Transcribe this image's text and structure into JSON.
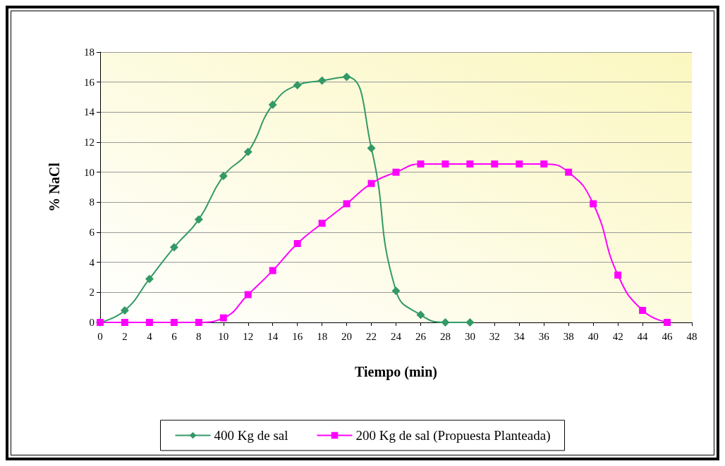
{
  "chart_data": {
    "type": "line",
    "xlabel": "Tiempo (min)",
    "ylabel": "% NaCl",
    "xlim": [
      0,
      48
    ],
    "xticks": [
      0,
      2,
      4,
      6,
      8,
      10,
      12,
      14,
      16,
      18,
      20,
      22,
      24,
      26,
      28,
      30,
      32,
      34,
      36,
      38,
      40,
      42,
      44,
      46,
      48
    ],
    "ylim": [
      0,
      18
    ],
    "yticks": [
      0,
      2,
      4,
      6,
      8,
      10,
      12,
      14,
      16,
      18
    ],
    "grid": "y",
    "legend": "bottom",
    "line_style": "solid",
    "series": [
      {
        "name": "400 Kg de sal",
        "color": "#339966",
        "marker": "diamond",
        "x": [
          0,
          2,
          4,
          6,
          8,
          10,
          12,
          14,
          16,
          18,
          20,
          22,
          24,
          26,
          28,
          30
        ],
        "values": [
          0,
          0.8,
          2.9,
          5.0,
          6.85,
          9.75,
          11.35,
          14.5,
          15.8,
          16.1,
          16.35,
          11.6,
          2.1,
          0.5,
          0,
          0
        ]
      },
      {
        "name": "200 Kg de sal (Propuesta Planteada)",
        "color": "#ff00ff",
        "marker": "square",
        "x": [
          0,
          2,
          4,
          6,
          8,
          10,
          12,
          14,
          16,
          18,
          20,
          22,
          24,
          26,
          28,
          30,
          32,
          34,
          36,
          38,
          40,
          42,
          44,
          46
        ],
        "values": [
          0,
          0,
          0,
          0,
          0,
          0.3,
          1.85,
          3.45,
          5.25,
          6.6,
          7.9,
          9.25,
          10.0,
          10.55,
          10.55,
          10.55,
          10.55,
          10.55,
          10.55,
          10.0,
          7.9,
          3.15,
          0.8,
          0
        ]
      }
    ]
  }
}
